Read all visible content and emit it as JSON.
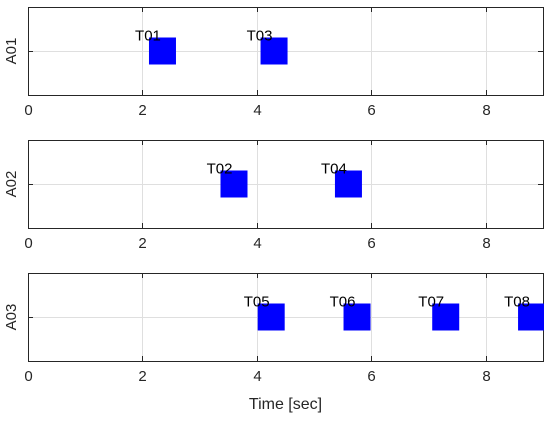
{
  "chart_data": [
    {
      "type": "scatter",
      "ylabel": "A01",
      "xlim": [
        0,
        9
      ],
      "x_ticks": [
        "0",
        "2",
        "4",
        "6",
        "8"
      ],
      "grid": true,
      "marker": "filled-square",
      "color": "#0000ff",
      "tasks": [
        {
          "label": "T01",
          "x": 2.35
        },
        {
          "label": "T03",
          "x": 4.3
        }
      ]
    },
    {
      "type": "scatter",
      "ylabel": "A02",
      "xlim": [
        0,
        9
      ],
      "x_ticks": [
        "0",
        "2",
        "4",
        "6",
        "8"
      ],
      "grid": true,
      "marker": "filled-square",
      "color": "#0000ff",
      "tasks": [
        {
          "label": "T02",
          "x": 3.6
        },
        {
          "label": "T04",
          "x": 5.6
        }
      ]
    },
    {
      "type": "scatter",
      "ylabel": "A03",
      "xlabel": "Time [sec]",
      "xlim": [
        0,
        9
      ],
      "x_ticks": [
        "0",
        "2",
        "4",
        "6",
        "8"
      ],
      "grid": true,
      "marker": "filled-square",
      "color": "#0000ff",
      "tasks": [
        {
          "label": "T05",
          "x": 4.25
        },
        {
          "label": "T06",
          "x": 5.75
        },
        {
          "label": "T07",
          "x": 7.3
        },
        {
          "label": "T08",
          "x": 8.8
        }
      ]
    }
  ]
}
